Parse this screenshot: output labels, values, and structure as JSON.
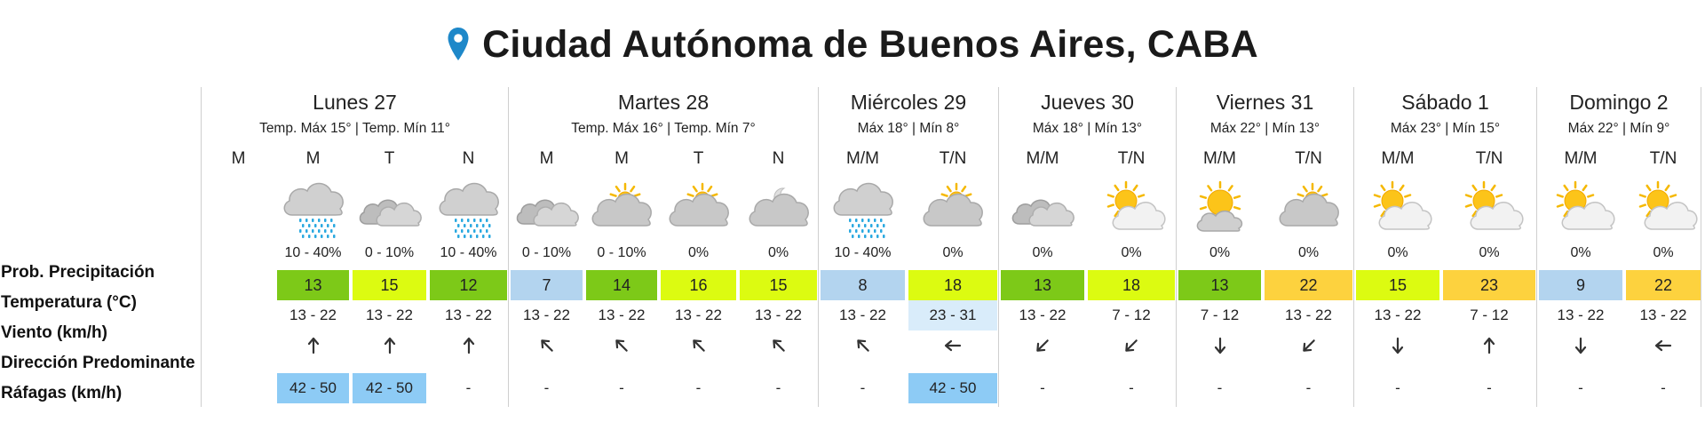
{
  "location": {
    "title": "Ciudad Autónoma de Buenos Aires, CABA",
    "icon": "location-pin-icon",
    "pin_color": "#1e88c9"
  },
  "row_labels": {
    "precipitation": "Prob. Precipitación",
    "temperature": "Temperatura (°C)",
    "wind": "Viento (km/h)",
    "direction": "Dirección Predominante",
    "gusts": "Ráfagas (km/h)"
  },
  "colors": {
    "green": "#7dc918",
    "lime": "#dcfb11",
    "blue": "#b3d4ef",
    "orange": "#fdd23e",
    "gust_blue": "#8dcbf5"
  },
  "days": [
    {
      "name": "Lunes 27",
      "temps": "Temp. Máx 15° | Temp. Mín 11°",
      "columns": [
        {
          "period": "M",
          "icon": "",
          "prob": "",
          "temp": "",
          "temp_color": "",
          "wind": "",
          "wind_color": "",
          "direction": "",
          "gust": ""
        },
        {
          "period": "M",
          "icon": "rain-cloud-icon",
          "prob": "10 - 40%",
          "temp": "13",
          "temp_color": "green",
          "wind": "13 - 22",
          "wind_color": "",
          "direction": "up",
          "gust": "42 - 50"
        },
        {
          "period": "T",
          "icon": "cloudy-icon",
          "prob": "0 - 10%",
          "temp": "15",
          "temp_color": "lime",
          "wind": "13 - 22",
          "wind_color": "",
          "direction": "up",
          "gust": "42 - 50"
        },
        {
          "period": "N",
          "icon": "rain-cloud-icon",
          "prob": "10 - 40%",
          "temp": "12",
          "temp_color": "green",
          "wind": "13 - 22",
          "wind_color": "",
          "direction": "up",
          "gust": "-"
        }
      ]
    },
    {
      "name": "Martes 28",
      "temps": "Temp. Máx 16° | Temp. Mín 7°",
      "columns": [
        {
          "period": "M",
          "icon": "cloudy-icon",
          "prob": "0 - 10%",
          "temp": "7",
          "temp_color": "blue",
          "wind": "13 - 22",
          "wind_color": "",
          "direction": "up-left",
          "gust": "-"
        },
        {
          "period": "M",
          "icon": "partly-cloudy-sun-icon",
          "prob": "0 - 10%",
          "temp": "14",
          "temp_color": "green",
          "wind": "13 - 22",
          "wind_color": "",
          "direction": "up-left",
          "gust": "-"
        },
        {
          "period": "T",
          "icon": "partly-cloudy-sun-icon",
          "prob": "0%",
          "temp": "16",
          "temp_color": "lime",
          "wind": "13 - 22",
          "wind_color": "",
          "direction": "up-left",
          "gust": "-"
        },
        {
          "period": "N",
          "icon": "cloudy-night-icon",
          "prob": "0%",
          "temp": "15",
          "temp_color": "lime",
          "wind": "13 - 22",
          "wind_color": "",
          "direction": "up-left",
          "gust": "-"
        }
      ]
    },
    {
      "name": "Miércoles 29",
      "temps": "Máx 18° | Mín 8°",
      "columns": [
        {
          "period": "M/M",
          "icon": "rain-cloud-icon",
          "prob": "10 - 40%",
          "temp": "8",
          "temp_color": "blue",
          "wind": "13 - 22",
          "wind_color": "",
          "direction": "up-left",
          "gust": "-"
        },
        {
          "period": "T/N",
          "icon": "partly-cloudy-sun-icon",
          "prob": "0%",
          "temp": "18",
          "temp_color": "lime",
          "wind": "23 - 31",
          "wind_color": "lightblue",
          "direction": "left",
          "gust": "42 - 50"
        }
      ]
    },
    {
      "name": "Jueves 30",
      "temps": "Máx 18° | Mín 13°",
      "columns": [
        {
          "period": "M/M",
          "icon": "cloudy-icon",
          "prob": "0%",
          "temp": "13",
          "temp_color": "green",
          "wind": "13 - 22",
          "wind_color": "",
          "direction": "down-left",
          "gust": "-"
        },
        {
          "period": "T/N",
          "icon": "sun-behind-cloud-icon",
          "prob": "0%",
          "temp": "18",
          "temp_color": "lime",
          "wind": "7 - 12",
          "wind_color": "",
          "direction": "down-left",
          "gust": "-"
        }
      ]
    },
    {
      "name": "Viernes 31",
      "temps": "Máx 22° | Mín 13°",
      "columns": [
        {
          "period": "M/M",
          "icon": "sun-cloud-icon",
          "prob": "0%",
          "temp": "13",
          "temp_color": "green",
          "wind": "7 - 12",
          "wind_color": "",
          "direction": "down",
          "gust": "-"
        },
        {
          "period": "T/N",
          "icon": "partly-cloudy-sun-icon",
          "prob": "0%",
          "temp": "22",
          "temp_color": "orange",
          "wind": "13 - 22",
          "wind_color": "",
          "direction": "down-left",
          "gust": "-"
        }
      ]
    },
    {
      "name": "Sábado 1",
      "temps": "Máx 23° | Mín 15°",
      "columns": [
        {
          "period": "M/M",
          "icon": "sun-behind-cloud-icon",
          "prob": "0%",
          "temp": "15",
          "temp_color": "lime",
          "wind": "13 - 22",
          "wind_color": "",
          "direction": "down",
          "gust": "-"
        },
        {
          "period": "T/N",
          "icon": "sun-behind-cloud-icon",
          "prob": "0%",
          "temp": "23",
          "temp_color": "orange",
          "wind": "7 - 12",
          "wind_color": "",
          "direction": "up",
          "gust": "-"
        }
      ]
    },
    {
      "name": "Domingo 2",
      "temps": "Máx 22° | Mín 9°",
      "columns": [
        {
          "period": "M/M",
          "icon": "sun-behind-cloud-icon",
          "prob": "0%",
          "temp": "9",
          "temp_color": "blue",
          "wind": "13 - 22",
          "wind_color": "",
          "direction": "down",
          "gust": "-"
        },
        {
          "period": "T/N",
          "icon": "sun-behind-cloud-icon",
          "prob": "0%",
          "temp": "22",
          "temp_color": "orange",
          "wind": "13 - 22",
          "wind_color": "",
          "direction": "left",
          "gust": "-"
        }
      ]
    }
  ]
}
